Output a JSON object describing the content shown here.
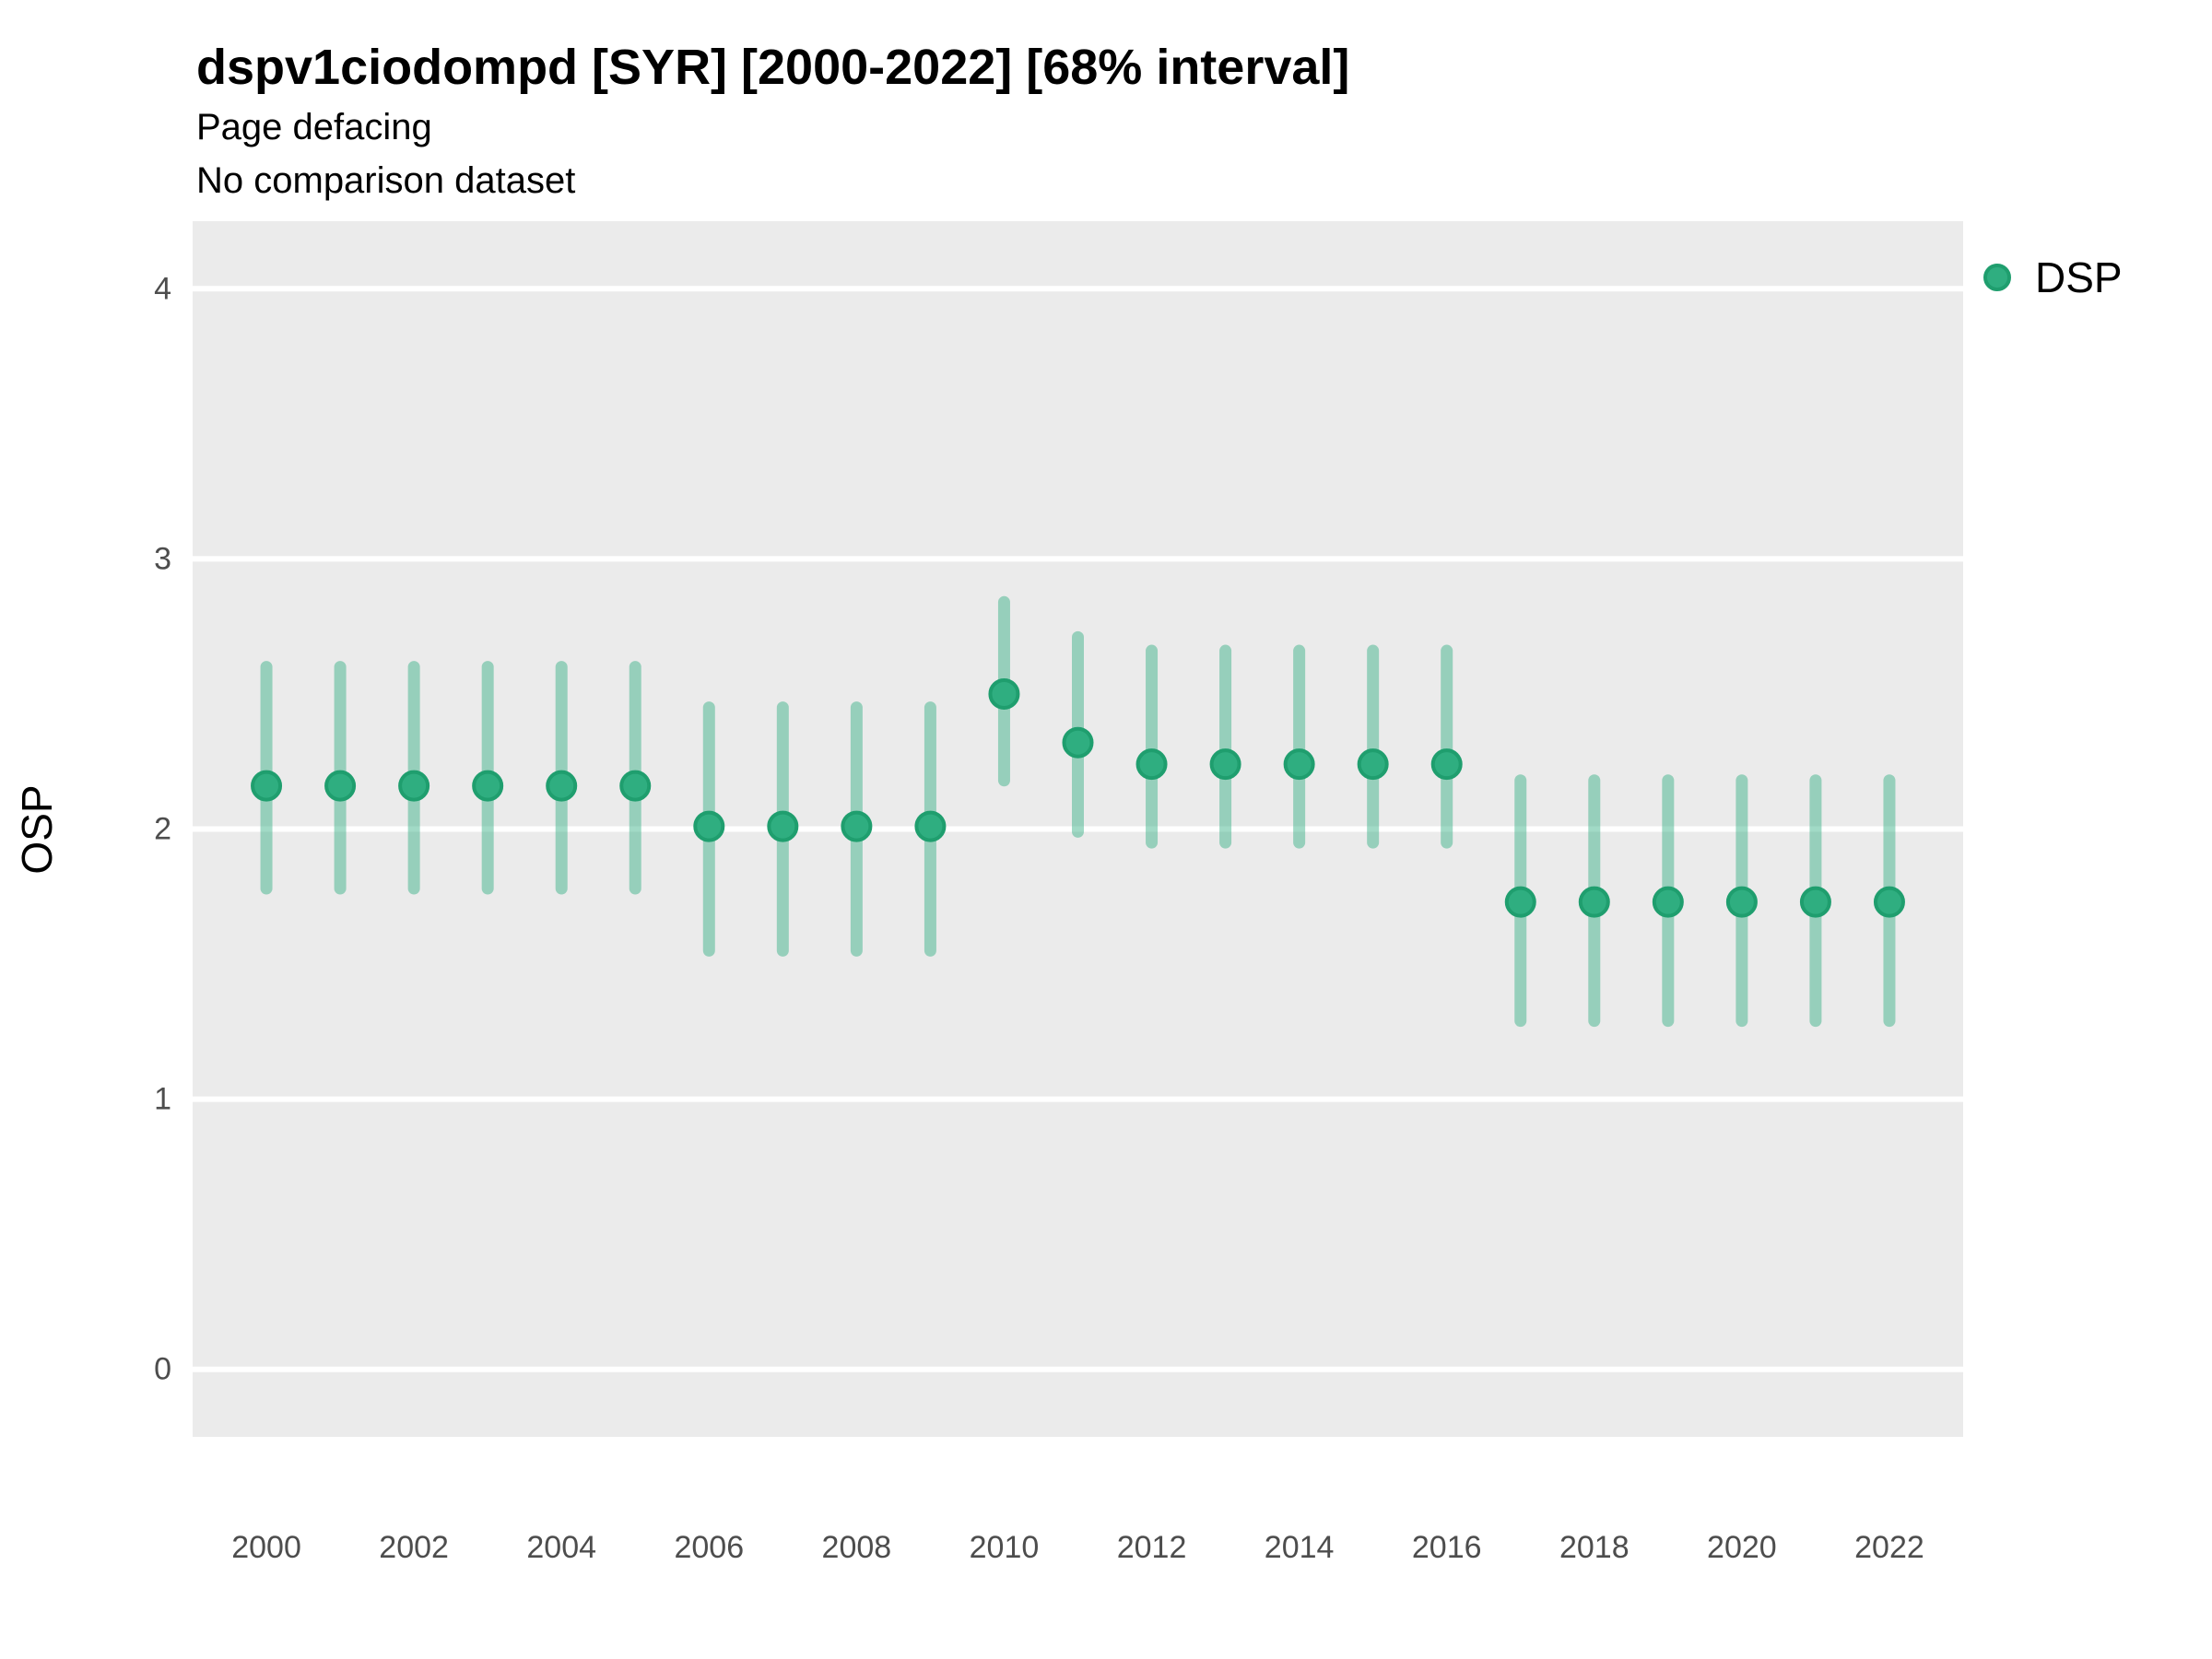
{
  "header": {
    "title": "dspv1ciodompd [SYR] [2000-2022] [68% interval]",
    "subtitle": "Page defacing",
    "note": "No comparison dataset"
  },
  "legend": {
    "label": "DSP"
  },
  "chart_data": {
    "type": "scatter",
    "variant": "pointrange",
    "title": "dspv1ciodompd [SYR] [2000-2022] [68% interval]",
    "subtitle": "Page defacing",
    "note": "No comparison dataset",
    "interval_label": "68% interval",
    "xlabel": "",
    "ylabel": "OSP",
    "legend_position": "right",
    "legend_entries": [
      "DSP"
    ],
    "grid": "major-y",
    "panel_bg": "#ebebeb",
    "grid_color": "#ffffff",
    "tick_label_color": "#4d4d4d",
    "point_color": "#2fae80",
    "point_stroke": "#1f9e6e",
    "interval_color": "#2fae80",
    "interval_opacity": 0.45,
    "xlim": [
      1999,
      2023
    ],
    "ylim": [
      -0.25,
      4.25
    ],
    "x_ticks": [
      2000,
      2002,
      2004,
      2006,
      2008,
      2010,
      2012,
      2014,
      2016,
      2018,
      2020,
      2022
    ],
    "y_ticks": [
      0,
      1,
      2,
      3,
      4
    ],
    "series": [
      {
        "name": "DSP",
        "x": [
          2000,
          2001,
          2002,
          2003,
          2004,
          2005,
          2006,
          2007,
          2008,
          2009,
          2010,
          2011,
          2012,
          2013,
          2014,
          2015,
          2016,
          2017,
          2018,
          2019,
          2020,
          2021,
          2022
        ],
        "y": [
          2.16,
          2.16,
          2.16,
          2.16,
          2.16,
          2.16,
          2.01,
          2.01,
          2.01,
          2.01,
          2.5,
          2.32,
          2.24,
          2.24,
          2.24,
          2.24,
          2.24,
          1.73,
          1.73,
          1.73,
          1.73,
          1.73,
          1.73
        ],
        "y_low": [
          1.78,
          1.78,
          1.78,
          1.78,
          1.78,
          1.78,
          1.55,
          1.55,
          1.55,
          1.55,
          2.18,
          1.99,
          1.95,
          1.95,
          1.95,
          1.95,
          1.95,
          1.29,
          1.29,
          1.29,
          1.29,
          1.29,
          1.29
        ],
        "y_high": [
          2.6,
          2.6,
          2.6,
          2.6,
          2.6,
          2.6,
          2.45,
          2.45,
          2.45,
          2.45,
          2.84,
          2.71,
          2.66,
          2.66,
          2.66,
          2.66,
          2.66,
          2.18,
          2.18,
          2.18,
          2.18,
          2.18,
          2.18
        ]
      }
    ]
  }
}
